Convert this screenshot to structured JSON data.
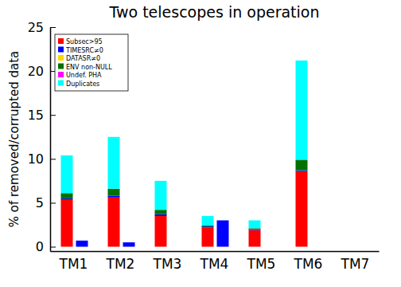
{
  "chart_data": {
    "type": "bar",
    "title": "Two telescopes in operation",
    "y_label": "% of removed/corrupted data",
    "categories": [
      "TM1",
      "TM2",
      "TM3",
      "TM4",
      "TM5",
      "TM6",
      "TM7"
    ],
    "stacked": true,
    "legend": "upper left",
    "grid": false,
    "ylim": [
      -0.5,
      25
    ],
    "yticks": [
      0,
      5,
      10,
      15,
      20,
      25
    ],
    "series": [
      {
        "name": "Subsec>95",
        "color": "#ff0000",
        "values": [
          [
            5.4,
            0
          ],
          [
            5.6,
            0
          ],
          [
            3.5,
            0
          ],
          [
            2.2,
            0
          ],
          [
            1.9,
            0
          ],
          [
            8.6,
            0
          ],
          [
            0,
            0
          ]
        ]
      },
      {
        "name": "TIMESRC≠0",
        "color": "#0000ff",
        "values": [
          [
            0.1,
            0.7
          ],
          [
            0.2,
            0.5
          ],
          [
            0.2,
            0
          ],
          [
            0.1,
            3.0
          ],
          [
            0.1,
            0
          ],
          [
            0.1,
            0
          ],
          [
            0,
            0
          ]
        ]
      },
      {
        "name": "DATASR≠0",
        "color": "#ffd700",
        "values": [
          [
            0,
            0
          ],
          [
            0,
            0
          ],
          [
            0,
            0
          ],
          [
            0,
            0
          ],
          [
            0,
            0
          ],
          [
            0,
            0
          ],
          [
            0,
            0
          ]
        ]
      },
      {
        "name": "ENV non-NULL",
        "color": "#007000",
        "values": [
          [
            0.6,
            0
          ],
          [
            0.8,
            0
          ],
          [
            0.5,
            0
          ],
          [
            0.1,
            0
          ],
          [
            0.1,
            0
          ],
          [
            1.2,
            0
          ],
          [
            0,
            0
          ]
        ]
      },
      {
        "name": "Undef. PHA",
        "color": "#ff00ff",
        "values": [
          [
            0,
            0
          ],
          [
            0,
            0
          ],
          [
            0,
            0
          ],
          [
            0,
            0
          ],
          [
            0,
            0
          ],
          [
            0,
            0
          ],
          [
            0,
            0
          ]
        ]
      },
      {
        "name": "Duplicates",
        "color": "#00ffff",
        "values": [
          [
            4.3,
            0
          ],
          [
            5.9,
            0
          ],
          [
            3.3,
            0
          ],
          [
            1.1,
            0
          ],
          [
            0.9,
            0
          ],
          [
            11.3,
            0
          ],
          [
            0,
            0
          ]
        ]
      }
    ]
  }
}
